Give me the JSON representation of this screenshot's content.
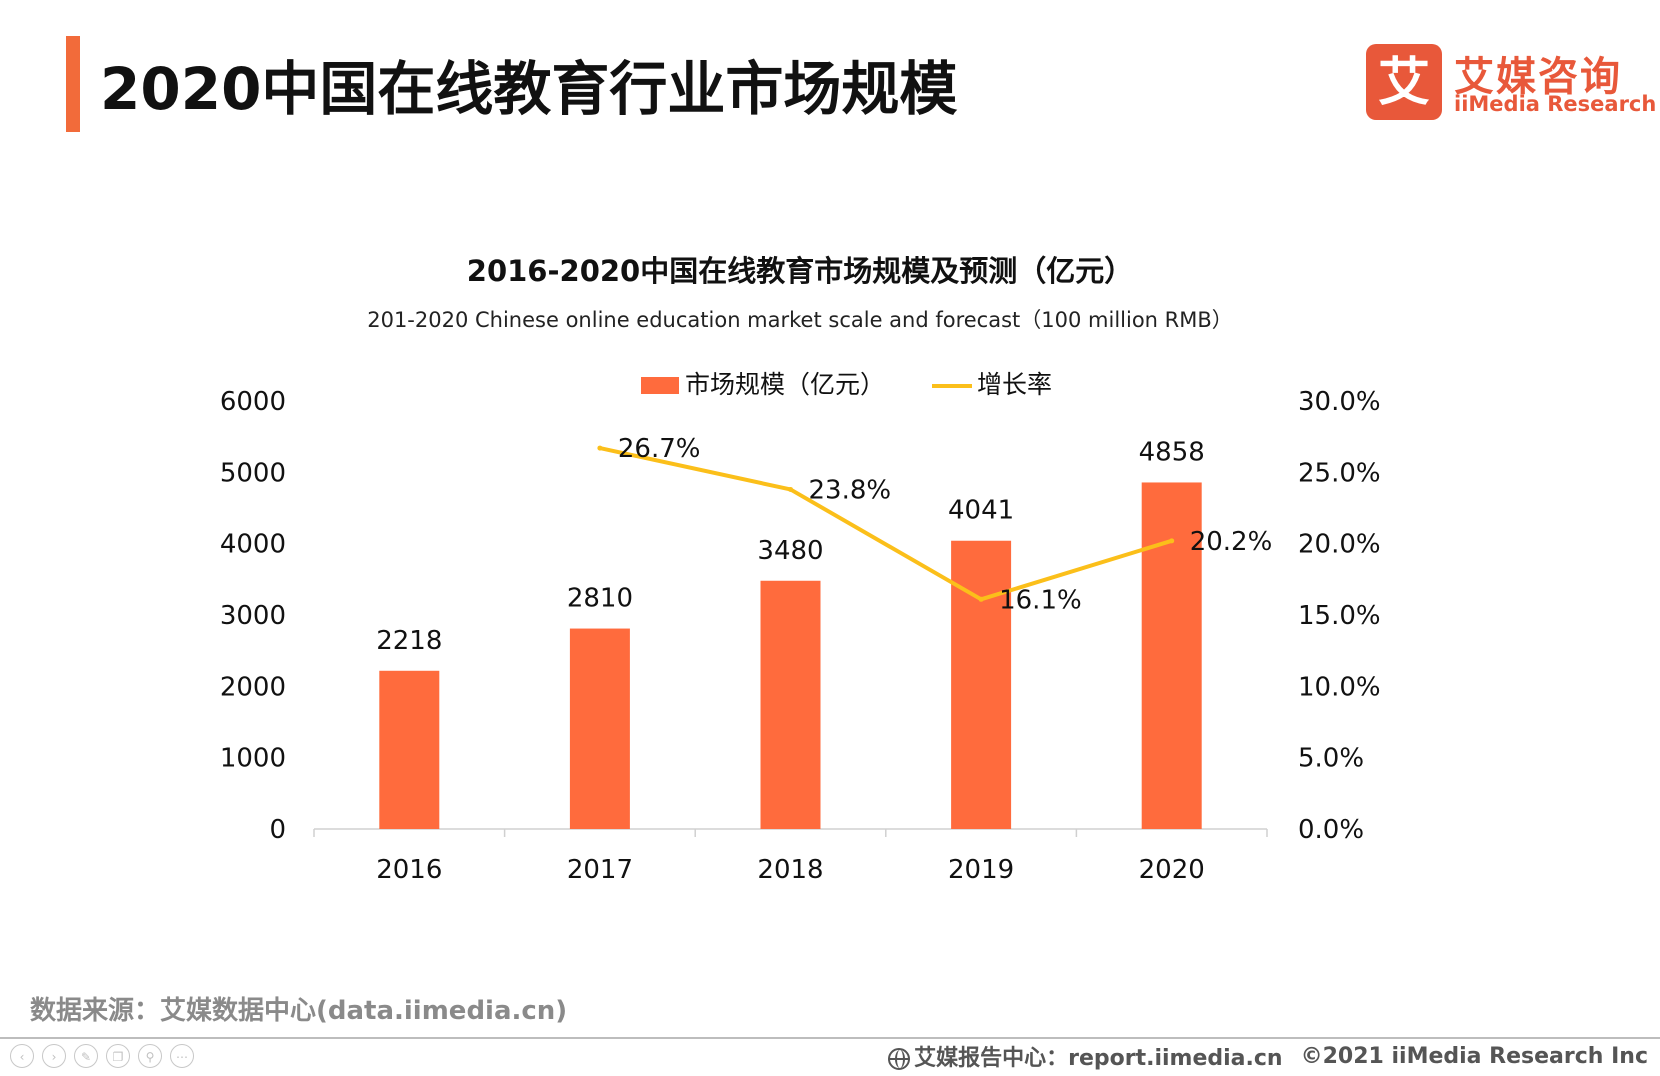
{
  "header": {
    "title": "2020中国在线教育行业市场规模",
    "logo_cn": "艾媒咨询",
    "logo_en": "iiMedia Research",
    "logo_mark_char": "艾"
  },
  "chart_data": {
    "type": "bar+line",
    "title": "2016-2020中国在线教育市场规模及预测（亿元）",
    "subtitle": "201-2020 Chinese online education market scale and forecast（100 million RMB）",
    "categories": [
      "2016",
      "2017",
      "2018",
      "2019",
      "2020"
    ],
    "series": [
      {
        "name": "市场规模（亿元）",
        "type": "bar",
        "axis": "left",
        "color": "#ff6b3d",
        "values": [
          2218,
          2810,
          3480,
          4041,
          4858
        ],
        "labels": [
          "2218",
          "2810",
          "3480",
          "4041",
          "4858"
        ]
      },
      {
        "name": "增长率",
        "type": "line",
        "axis": "right",
        "color": "#fbbf1a",
        "values": [
          null,
          26.7,
          23.8,
          16.1,
          20.2
        ],
        "labels": [
          "",
          "26.7%",
          "23.8%",
          "16.1%",
          "20.2%"
        ]
      }
    ],
    "y_left": {
      "min": 0,
      "max": 6000,
      "ticks": [
        "0",
        "1000",
        "2000",
        "3000",
        "4000",
        "5000",
        "6000"
      ]
    },
    "y_right": {
      "min": 0,
      "max": 30,
      "ticks": [
        "0.0%",
        "5.0%",
        "10.0%",
        "15.0%",
        "20.0%",
        "25.0%",
        "30.0%"
      ]
    },
    "legend_position": "top-center",
    "grid": false
  },
  "footer": {
    "source": "数据来源：艾媒数据中心(data.iimedia.cn)",
    "report_center": "艾媒报告中心：report.iimedia.cn",
    "copyright": "©2021  iiMedia Research  Inc",
    "nav_icons": [
      "prev-icon",
      "next-icon",
      "pen-icon",
      "copy-icon",
      "zoom-icon",
      "more-icon"
    ]
  }
}
